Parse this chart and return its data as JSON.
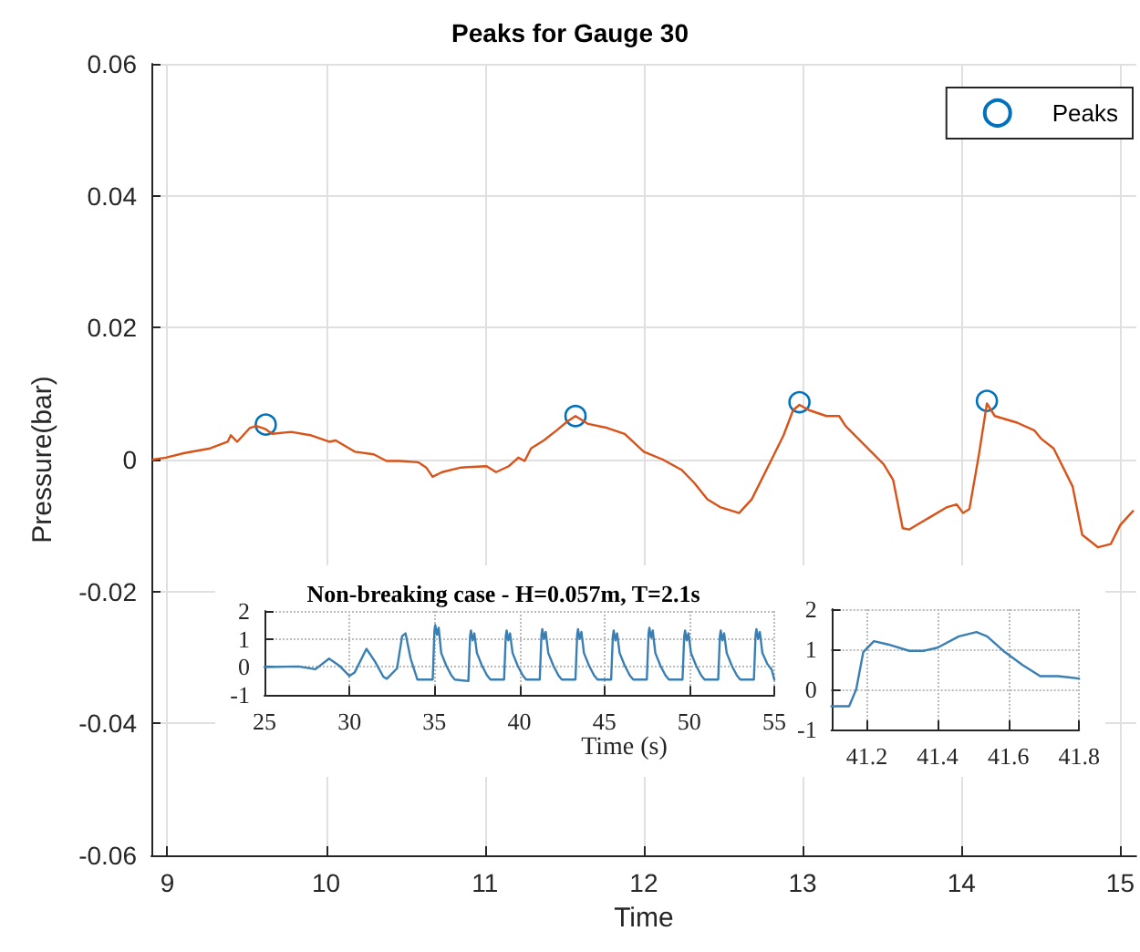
{
  "chart_data": [
    {
      "type": "line",
      "title": "Peaks for Gauge 30",
      "xlabel": "Time",
      "ylabel": "Pressure(bar)",
      "xlim": [
        8.9,
        15.1
      ],
      "ylim": [
        -0.06,
        0.06
      ],
      "xticks": [
        9,
        10,
        11,
        12,
        13,
        14,
        15
      ],
      "yticks": [
        -0.06,
        -0.04,
        -0.02,
        0,
        0.02,
        0.04,
        0.06
      ],
      "grid": true,
      "legend": "top right",
      "series": [
        {
          "type": "line",
          "color": "#d95319",
          "marker": "none",
          "x": [
            8.91,
            8.99,
            9.11,
            9.27,
            9.38,
            9.4,
            9.44,
            9.52,
            9.56,
            9.62,
            9.66,
            9.78,
            9.9,
            10.02,
            10.06,
            10.18,
            10.3,
            10.38,
            10.46,
            10.58,
            10.63,
            10.67,
            10.73,
            10.85,
            11.01,
            11.07,
            11.15,
            11.21,
            11.25,
            11.29,
            11.37,
            11.45,
            11.52,
            11.57,
            11.65,
            11.77,
            11.88,
            12.0,
            12.12,
            12.24,
            12.32,
            12.4,
            12.48,
            12.6,
            12.68,
            12.8,
            12.88,
            12.94,
            12.98,
            13.04,
            13.15,
            13.23,
            13.27,
            13.39,
            13.51,
            13.57,
            13.63,
            13.67,
            13.79,
            13.91,
            13.97,
            14.01,
            14.05,
            14.11,
            14.16,
            14.21,
            14.35,
            14.46,
            14.5,
            14.58,
            14.7,
            14.76,
            14.86,
            14.94,
            15.0,
            15.08
          ],
          "values": [
            0,
            0.0003,
            0.001,
            0.0017,
            0.0027,
            0.0037,
            0.0027,
            0.0048,
            0.0051,
            0.0046,
            0.0039,
            0.0042,
            0.0037,
            0.0027,
            0.0029,
            0.0012,
            0.0008,
            -0.0002,
            -0.0002,
            -0.0004,
            -0.0012,
            -0.0026,
            -0.0019,
            -0.0012,
            -0.001,
            -0.0019,
            -0.001,
            0.0003,
            -0.0002,
            0.0017,
            0.0029,
            0.0044,
            0.0058,
            0.0066,
            0.0054,
            0.0048,
            0.0039,
            0.0012,
            0,
            -0.0016,
            -0.0036,
            -0.006,
            -0.0072,
            -0.0081,
            -0.006,
            -0.0002,
            0.0037,
            0.0075,
            0.0083,
            0.0075,
            0.0066,
            0.0066,
            0.0051,
            0.0022,
            -0.0007,
            -0.0031,
            -0.0104,
            -0.0106,
            -0.0089,
            -0.0072,
            -0.0068,
            -0.0081,
            -0.0075,
            0.0008,
            0.0085,
            0.0066,
            0.0056,
            0.0044,
            0.0032,
            0.0017,
            -0.0041,
            -0.0114,
            -0.0133,
            -0.0128,
            -0.0099,
            -0.0078
          ]
        },
        {
          "type": "scatter",
          "name": "Peaks",
          "color": "#0072bd",
          "marker": "circle",
          "x": [
            9.62,
            11.57,
            12.98,
            14.16
          ],
          "values": [
            0.0053,
            0.0066,
            0.0087,
            0.0089
          ]
        }
      ]
    },
    {
      "type": "line",
      "title": "Non-breaking case - H=0.057m, T=2.1s",
      "xlabel": "Time (s)",
      "xlim": [
        25,
        55
      ],
      "ylim": [
        -1,
        2
      ],
      "xticks": [
        25,
        30,
        35,
        40,
        45,
        50,
        55
      ],
      "yticks": [
        -1,
        0,
        1,
        2
      ],
      "grid": true,
      "series": [
        {
          "color": "#3a7fb4",
          "marker": "none",
          "x": [
            25,
            27,
            28,
            28.8,
            29.4,
            30,
            30.3,
            31,
            31.5,
            32,
            32.2,
            32.8,
            33.1,
            33.3,
            33.6,
            34,
            34.9,
            35,
            35.05,
            35.15,
            35.25,
            35.4,
            35.7,
            36,
            36.2,
            37,
            37.1,
            37.15,
            37.25,
            37.35,
            37.5,
            37.8,
            38.1,
            38.3,
            39.1,
            39.2,
            39.25,
            39.35,
            39.45,
            39.6,
            39.9,
            40.2,
            40.4,
            41.2,
            41.3,
            41.35,
            41.45,
            41.55,
            41.7,
            42,
            42.3,
            42.5,
            43.3,
            43.4,
            43.45,
            43.55,
            43.65,
            43.8,
            44.1,
            44.4,
            44.6,
            45.4,
            45.5,
            45.55,
            45.65,
            45.75,
            45.9,
            46.2,
            46.5,
            46.7,
            47.5,
            47.6,
            47.65,
            47.75,
            47.85,
            48,
            48.3,
            48.6,
            48.8,
            49.6,
            49.7,
            49.75,
            49.85,
            49.95,
            50.1,
            50.4,
            50.7,
            50.9,
            51.7,
            51.8,
            51.85,
            51.95,
            52.05,
            52.2,
            52.5,
            52.8,
            53,
            53.8,
            53.9,
            53.95,
            54.05,
            54.15,
            54.3,
            54.6,
            54.85,
            55
          ],
          "values": [
            0,
            0.02,
            -0.08,
            0.3,
            0.05,
            -0.32,
            -0.2,
            0.65,
            0.2,
            -0.35,
            -0.42,
            -0.05,
            1.1,
            1.2,
            0.3,
            -0.45,
            -0.45,
            1.3,
            1.5,
            1.15,
            1.4,
            0.5,
            0.05,
            -0.3,
            -0.45,
            -0.5,
            1.1,
            1.3,
            0.95,
            1.2,
            0.5,
            0.05,
            -0.3,
            -0.45,
            -0.45,
            1.1,
            1.3,
            0.95,
            1.2,
            0.5,
            0.05,
            -0.3,
            -0.45,
            -0.45,
            1.15,
            1.35,
            1,
            1.25,
            0.5,
            0.05,
            -0.3,
            -0.45,
            -0.45,
            1.15,
            1.35,
            1,
            1.25,
            0.5,
            0.05,
            -0.3,
            -0.45,
            -0.45,
            1.1,
            1.3,
            0.95,
            1.2,
            0.5,
            0.05,
            -0.3,
            -0.45,
            -0.45,
            1.2,
            1.4,
            1.05,
            1.3,
            0.5,
            0.05,
            -0.3,
            -0.45,
            -0.45,
            1.1,
            1.3,
            0.95,
            1.2,
            0.5,
            0.05,
            -0.3,
            -0.45,
            -0.45,
            1.1,
            1.3,
            0.95,
            1.2,
            0.5,
            0.05,
            -0.3,
            -0.45,
            -0.45,
            1.15,
            1.35,
            1,
            1.25,
            0.5,
            0.1,
            -0.1,
            -0.45
          ]
        }
      ]
    },
    {
      "type": "line",
      "xlim": [
        41.1,
        41.8
      ],
      "ylim": [
        -1,
        2
      ],
      "xticks": [
        41.2,
        41.4,
        41.6,
        41.8
      ],
      "yticks": [
        -1,
        0,
        1,
        2
      ],
      "grid": true,
      "series": [
        {
          "color": "#3a7fb4",
          "marker": "none",
          "x": [
            41.1,
            41.15,
            41.17,
            41.19,
            41.22,
            41.26,
            41.32,
            41.36,
            41.4,
            41.46,
            41.51,
            41.54,
            41.59,
            41.64,
            41.69,
            41.74,
            41.77,
            41.8
          ],
          "values": [
            -0.42,
            -0.42,
            0,
            0.93,
            1.2,
            1.12,
            0.96,
            0.96,
            1.04,
            1.32,
            1.43,
            1.32,
            0.93,
            0.61,
            0.33,
            0.33,
            0.3,
            0.27
          ]
        }
      ]
    }
  ]
}
